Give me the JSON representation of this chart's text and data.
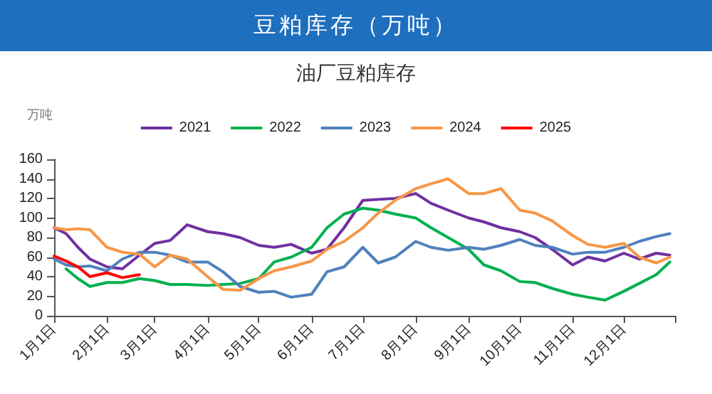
{
  "chart_data": {
    "type": "line",
    "title": "豆粕库存（万吨）",
    "subtitle": "油厂豆粕库存",
    "ylabel": "万吨",
    "x": [
      "--01-01",
      "--01-08",
      "--01-15",
      "--01-22",
      "--02-01",
      "--02-10",
      "--02-20",
      "--03-01",
      "--03-10",
      "--03-20",
      "--04-01",
      "--04-10",
      "--04-20",
      "--05-01",
      "--05-10",
      "--05-20",
      "--06-01",
      "--06-10",
      "--06-20",
      "--07-01",
      "--07-10",
      "--07-20",
      "--08-01",
      "--08-10",
      "--08-20",
      "--09-01",
      "--09-10",
      "--09-20",
      "--10-01",
      "--10-10",
      "--10-20",
      "--11-01",
      "--11-10",
      "--11-20",
      "--12-01",
      "--12-10",
      "--12-20",
      "--12-28"
    ],
    "series": [
      {
        "name": "2021",
        "color": "#7030a0",
        "values": [
          90,
          84,
          70,
          58,
          50,
          48,
          62,
          74,
          77,
          93,
          86,
          84,
          80,
          72,
          70,
          73,
          64,
          68,
          90,
          118,
          119,
          120,
          125,
          115,
          108,
          100,
          96,
          90,
          86,
          80,
          68,
          52,
          60,
          56,
          64,
          58,
          64,
          62
        ]
      },
      {
        "name": "2022",
        "color": "#00b050",
        "values": [
          null,
          48,
          38,
          30,
          34,
          34,
          38,
          36,
          32,
          32,
          31,
          32,
          33,
          38,
          55,
          60,
          70,
          90,
          104,
          110,
          108,
          104,
          100,
          90,
          80,
          68,
          52,
          46,
          35,
          34,
          28,
          22,
          19,
          16,
          25,
          33,
          42,
          55
        ]
      },
      {
        "name": "2023",
        "color": "#4f81bd",
        "values": [
          58,
          52,
          50,
          51,
          46,
          58,
          65,
          65,
          62,
          55,
          55,
          45,
          30,
          24,
          25,
          19,
          22,
          45,
          50,
          70,
          54,
          60,
          76,
          70,
          67,
          70,
          68,
          72,
          78,
          72,
          70,
          63,
          65,
          65,
          70,
          76,
          81,
          84
        ]
      },
      {
        "name": "2024",
        "color": "#f79646",
        "values": [
          90,
          88,
          89,
          88,
          70,
          65,
          63,
          50,
          62,
          58,
          40,
          27,
          26,
          38,
          46,
          50,
          56,
          68,
          76,
          90,
          105,
          118,
          130,
          135,
          140,
          125,
          125,
          130,
          108,
          105,
          97,
          82,
          73,
          70,
          74,
          60,
          54,
          60
        ]
      },
      {
        "name": "2025",
        "color": "#ff0000",
        "values": [
          61,
          56,
          50,
          40,
          44,
          39,
          42,
          null,
          null,
          null,
          null,
          null,
          null,
          null,
          null,
          null,
          null,
          null,
          null,
          null,
          null,
          null,
          null,
          null,
          null,
          null,
          null,
          null,
          null,
          null,
          null,
          null,
          null,
          null,
          null,
          null,
          null,
          null
        ]
      }
    ],
    "xlim": [
      "--01-01",
      "--12-31"
    ],
    "xticks": [
      {
        "value": "--01-01",
        "label": "1月1日"
      },
      {
        "value": "--02-01",
        "label": "2月1日"
      },
      {
        "value": "--03-01",
        "label": "3月1日"
      },
      {
        "value": "--04-01",
        "label": "4月1日"
      },
      {
        "value": "--05-01",
        "label": "5月1日"
      },
      {
        "value": "--06-01",
        "label": "6月1日"
      },
      {
        "value": "--07-01",
        "label": "7月1日"
      },
      {
        "value": "--08-01",
        "label": "8月1日"
      },
      {
        "value": "--09-01",
        "label": "9月1日"
      },
      {
        "value": "--10-01",
        "label": "10月1日"
      },
      {
        "value": "--11-01",
        "label": "11月1日"
      },
      {
        "value": "--12-01",
        "label": "12月1日"
      }
    ],
    "ylim": [
      0,
      160
    ],
    "yticks": [
      0,
      20,
      40,
      60,
      80,
      100,
      120,
      140,
      160
    ],
    "grid": false,
    "legend": "top",
    "marker": "none",
    "line_style": "solid"
  }
}
